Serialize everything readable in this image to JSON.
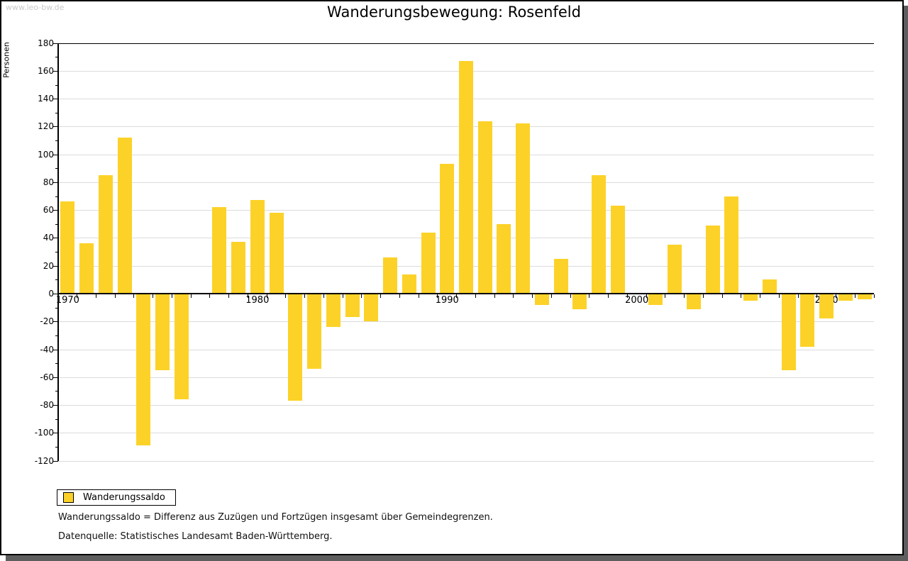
{
  "watermark": "www.leo-bw.de",
  "legend": {
    "label": "Wanderungssaldo"
  },
  "footnotes": [
    "Wanderungssaldo = Differenz aus Zuzügen und Fortzügen insgesamt über Gemeindegrenzen.",
    "Datenquelle: Statistisches Landesamt Baden-Württemberg."
  ],
  "colors": {
    "bar": "#fcd228",
    "grid": "#dcdcdc",
    "axis": "#000000",
    "shadow": "#5e5e5e",
    "watermark": "#c9c9c9"
  },
  "chart_data": {
    "type": "bar",
    "title": "Wanderungsbewegung: Rosenfeld",
    "xlabel": "",
    "ylabel": "Personen",
    "ylim": [
      -120,
      180
    ],
    "ytick_step": 20,
    "grid": true,
    "legend_position": "bottom-left",
    "categories": [
      "1970",
      "1971",
      "1972",
      "1973",
      "1974",
      "1975",
      "1976",
      "1977",
      "1978",
      "1979",
      "1980",
      "1981",
      "1982",
      "1983",
      "1984",
      "1985",
      "1986",
      "1987",
      "1988",
      "1989",
      "1990",
      "1991",
      "1992",
      "1993",
      "1994",
      "1995",
      "1996",
      "1997",
      "1998",
      "1999",
      "2000",
      "2001",
      "2002",
      "2003",
      "2004",
      "2005",
      "2006",
      "2007",
      "2008",
      "2009",
      "2010",
      "2011",
      "2012"
    ],
    "labeled_xticks": [
      "1970",
      "1980",
      "1990",
      "2000",
      "2010"
    ],
    "series": [
      {
        "name": "Wanderungssaldo",
        "values": [
          66,
          36,
          85,
          112,
          -109,
          -55,
          -76,
          0,
          62,
          37,
          67,
          58,
          -77,
          -54,
          -24,
          -17,
          -20,
          26,
          14,
          44,
          93,
          167,
          124,
          50,
          122,
          -8,
          25,
          -11,
          85,
          63,
          0,
          -8,
          35,
          -11,
          49,
          70,
          -5,
          10,
          -55,
          -38,
          -18,
          -5,
          -4
        ]
      }
    ]
  }
}
